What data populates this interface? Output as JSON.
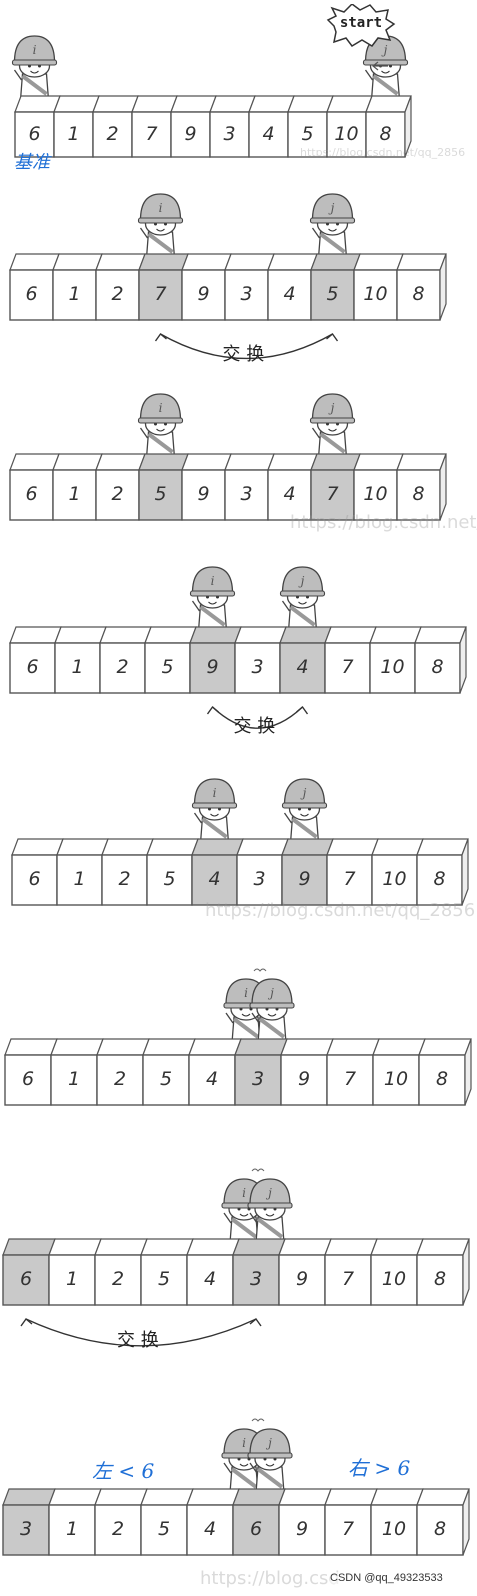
{
  "steps": [
    {
      "values": [
        "6",
        "1",
        "2",
        "7",
        "9",
        "3",
        "4",
        "5",
        "10",
        "8"
      ],
      "highlight": [],
      "i": 0,
      "j": 9,
      "swap": false
    },
    {
      "values": [
        "6",
        "1",
        "2",
        "7",
        "9",
        "3",
        "4",
        "5",
        "10",
        "8"
      ],
      "highlight": [
        3,
        7
      ],
      "i": 3,
      "j": 7,
      "swap": true
    },
    {
      "values": [
        "6",
        "1",
        "2",
        "5",
        "9",
        "3",
        "4",
        "7",
        "10",
        "8"
      ],
      "highlight": [
        3,
        7
      ],
      "i": 3,
      "j": 7,
      "swap": false
    },
    {
      "values": [
        "6",
        "1",
        "2",
        "5",
        "9",
        "3",
        "4",
        "7",
        "10",
        "8"
      ],
      "highlight": [
        4,
        6
      ],
      "i": 4,
      "j": 6,
      "swap": true
    },
    {
      "values": [
        "6",
        "1",
        "2",
        "5",
        "4",
        "3",
        "9",
        "7",
        "10",
        "8"
      ],
      "highlight": [
        4,
        6
      ],
      "i": 4,
      "j": 6,
      "swap": false
    },
    {
      "values": [
        "6",
        "1",
        "2",
        "5",
        "4",
        "3",
        "9",
        "7",
        "10",
        "8"
      ],
      "highlight": [
        5
      ],
      "i": 5,
      "j": 5,
      "swap": false
    },
    {
      "values": [
        "6",
        "1",
        "2",
        "5",
        "4",
        "3",
        "9",
        "7",
        "10",
        "8"
      ],
      "highlight": [
        0,
        5
      ],
      "i": 5,
      "j": 5,
      "swap": true
    },
    {
      "values": [
        "3",
        "1",
        "2",
        "5",
        "4",
        "6",
        "9",
        "7",
        "10",
        "8"
      ],
      "highlight": [
        0,
        5
      ],
      "i": 5,
      "j": 5,
      "swap": false
    }
  ],
  "labels": {
    "start": "start",
    "swap": "交 换",
    "pivot_note": "基准",
    "left_note": "左 < 6",
    "right_note": "右 > 6",
    "i_letter": "i",
    "j_letter": "j"
  },
  "watermarks": [
    "https://blog.csdn.net/qq_2856",
    "https://blog.csdn.net/",
    "https://blog.csdn.net/qq_2856",
    "https://blog.csd"
  ],
  "credit": "CSDN @qq_49323533",
  "colors": {
    "cell_fill": "#ffffff",
    "cell_highlight": "#c9c9c9",
    "outline": "#555555",
    "note_blue": "#1f6fd6",
    "helmet": "#bdbdbd"
  }
}
